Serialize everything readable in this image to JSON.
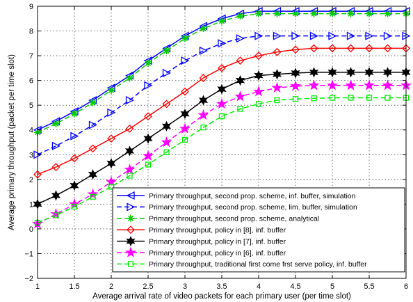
{
  "chart_data": {
    "type": "line",
    "xlabel": "Average arrival rate of video packets for each primary user (per time slot)",
    "ylabel": "Average primary throughput (packet per time slot)",
    "xlim": [
      1,
      6
    ],
    "ylim": [
      -2,
      9
    ],
    "grid": true,
    "legend_position": "bottom-right",
    "x": [
      1,
      1.25,
      1.5,
      1.75,
      2,
      2.25,
      2.5,
      2.75,
      3,
      3.25,
      3.5,
      3.75,
      4,
      4.25,
      4.5,
      4.75,
      5,
      5.25,
      5.5,
      5.75,
      6
    ],
    "xticks": [
      "1",
      "1.5",
      "2",
      "2.5",
      "3",
      "3.5",
      "4",
      "4.5",
      "5",
      "5.5",
      "6"
    ],
    "yticks": [
      "−2",
      "−1",
      "0",
      "1",
      "2",
      "3",
      "4",
      "5",
      "6",
      "7",
      "8",
      "9"
    ],
    "series": [
      {
        "name": "Primary throughput, second prop. scheme, inf. buffer, simulation",
        "color": "#0000ff",
        "dash": "solid",
        "marker": "triangle-left",
        "values": [
          4.0,
          4.35,
          4.75,
          5.2,
          5.7,
          6.2,
          6.8,
          7.3,
          7.8,
          8.2,
          8.5,
          8.7,
          8.8,
          8.8,
          8.8,
          8.8,
          8.8,
          8.8,
          8.8,
          8.8,
          8.8
        ]
      },
      {
        "name": "Primary throughput, second prop. scheme, lim. buffer, simulation",
        "color": "#0000ff",
        "dash": "dashed",
        "marker": "triangle-right",
        "values": [
          3.0,
          3.35,
          3.75,
          4.2,
          4.7,
          5.2,
          5.8,
          6.3,
          6.8,
          7.2,
          7.5,
          7.7,
          7.8,
          7.8,
          7.8,
          7.8,
          7.8,
          7.8,
          7.8,
          7.8,
          7.8
        ]
      },
      {
        "name": "Primary throughput, second prop. scheme, analytical",
        "color": "#00cc00",
        "dash": "dashed",
        "marker": "asterisk",
        "values": [
          3.9,
          4.25,
          4.65,
          5.1,
          5.6,
          6.1,
          6.7,
          7.2,
          7.7,
          8.1,
          8.4,
          8.6,
          8.7,
          8.7,
          8.7,
          8.7,
          8.7,
          8.7,
          8.7,
          8.7,
          8.7
        ]
      },
      {
        "name": "Primary throughput, policy in [8], inf. buffer",
        "color": "#ff0000",
        "dash": "solid",
        "marker": "diamond",
        "values": [
          2.2,
          2.5,
          2.85,
          3.25,
          3.65,
          4.05,
          4.55,
          5.05,
          5.55,
          6.1,
          6.5,
          6.8,
          7.0,
          7.15,
          7.25,
          7.3,
          7.3,
          7.3,
          7.3,
          7.3,
          7.3
        ]
      },
      {
        "name": "Primary throughput, policy in [7], inf. buffer",
        "color": "#000000",
        "dash": "solid",
        "marker": "hexagram",
        "values": [
          1.0,
          1.35,
          1.75,
          2.2,
          2.65,
          3.15,
          3.65,
          4.15,
          4.65,
          5.2,
          5.65,
          6.0,
          6.2,
          6.25,
          6.3,
          6.33,
          6.33,
          6.33,
          6.33,
          6.33,
          6.33
        ]
      },
      {
        "name": "Primary throughput, policy in [6], inf. buffer",
        "color": "#ff00ff",
        "dash": "dashed",
        "marker": "star",
        "values": [
          0.2,
          0.6,
          1.0,
          1.4,
          1.9,
          2.4,
          2.95,
          3.5,
          4.05,
          4.6,
          5.05,
          5.35,
          5.55,
          5.7,
          5.77,
          5.8,
          5.8,
          5.8,
          5.8,
          5.8,
          5.8
        ]
      },
      {
        "name": "Primary throughput, traditional first come frst serve policy, inf. buffer",
        "color": "#00ee00",
        "dash": "dashed",
        "marker": "square",
        "values": [
          0.25,
          0.55,
          0.9,
          1.3,
          1.7,
          2.15,
          2.6,
          3.1,
          3.6,
          4.1,
          4.55,
          4.85,
          5.05,
          5.2,
          5.25,
          5.28,
          5.3,
          5.3,
          5.3,
          5.3,
          5.3
        ]
      }
    ]
  }
}
